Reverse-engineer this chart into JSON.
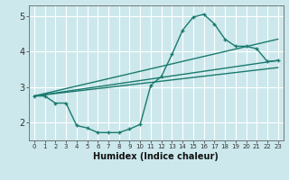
{
  "title": "",
  "xlabel": "Humidex (Indice chaleur)",
  "bg_color": "#cce8ec",
  "grid_color": "#ffffff",
  "line_color": "#1a7a6e",
  "xlim": [
    -0.5,
    23.5
  ],
  "ylim": [
    1.5,
    5.3
  ],
  "xticks": [
    0,
    1,
    2,
    3,
    4,
    5,
    6,
    7,
    8,
    9,
    10,
    11,
    12,
    13,
    14,
    15,
    16,
    17,
    18,
    19,
    20,
    21,
    22,
    23
  ],
  "yticks": [
    2,
    3,
    4,
    5
  ],
  "line1_x": [
    0,
    1,
    2,
    3,
    4,
    5,
    6,
    7,
    8,
    9,
    10,
    11,
    12,
    13,
    14,
    15,
    16,
    17,
    18,
    19,
    20,
    21,
    22,
    23
  ],
  "line1_y": [
    2.75,
    2.75,
    2.55,
    2.55,
    1.92,
    1.85,
    1.72,
    1.72,
    1.72,
    1.82,
    1.95,
    3.05,
    3.3,
    3.92,
    4.6,
    4.97,
    5.05,
    4.78,
    4.35,
    4.15,
    4.15,
    4.08,
    3.72,
    3.75
  ],
  "line2_x": [
    0,
    23
  ],
  "line2_y": [
    2.75,
    3.75
  ],
  "line3_x": [
    0,
    23
  ],
  "line3_y": [
    2.75,
    4.35
  ],
  "line4_x": [
    0,
    23
  ],
  "line4_y": [
    2.75,
    3.55
  ]
}
